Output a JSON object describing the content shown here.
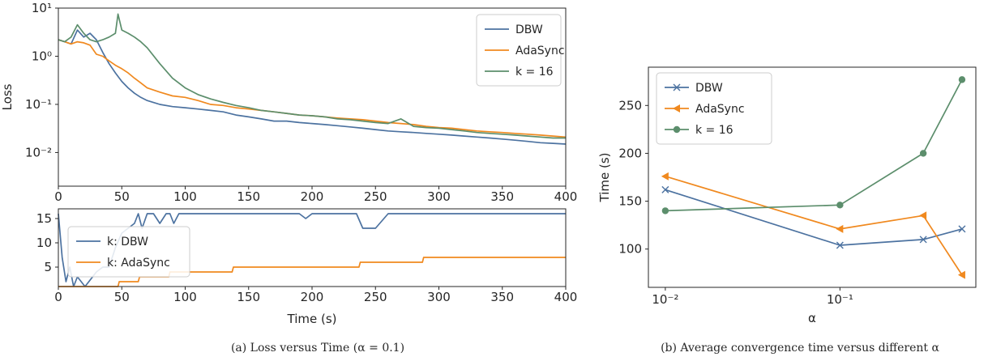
{
  "captions": {
    "a": "(a) Loss versus Time (α = 0.1)",
    "b": "(b) Average convergence time versus different α"
  },
  "colors": {
    "dbw": "#4c72a0",
    "adasync": "#f0891f",
    "k16": "#5c8e6c"
  },
  "chart_data": [
    {
      "type": "line",
      "ylabel": "Loss",
      "yscale": "log",
      "xlim": [
        0,
        400
      ],
      "ylim": [
        0.002,
        10
      ],
      "xticks": [
        "0",
        "50",
        "100",
        "150",
        "200",
        "250",
        "300",
        "350",
        "400"
      ],
      "yticks": [
        "10⁻²",
        "10⁻¹",
        "10⁰",
        "10¹"
      ],
      "legend_position": "top-right",
      "series": [
        {
          "name": "DBW",
          "x": [
            0,
            5,
            10,
            15,
            20,
            25,
            30,
            35,
            40,
            45,
            50,
            55,
            60,
            65,
            70,
            80,
            90,
            100,
            110,
            120,
            130,
            140,
            150,
            160,
            170,
            180,
            190,
            200,
            210,
            220,
            230,
            240,
            250,
            260,
            270,
            280,
            290,
            300,
            310,
            320,
            330,
            340,
            350,
            360,
            370,
            380,
            390,
            400
          ],
          "y": [
            2.2,
            2.0,
            1.8,
            3.5,
            2.5,
            3.0,
            2.2,
            1.2,
            0.7,
            0.45,
            0.3,
            0.22,
            0.17,
            0.14,
            0.12,
            0.1,
            0.09,
            0.085,
            0.08,
            0.075,
            0.07,
            0.06,
            0.055,
            0.05,
            0.045,
            0.045,
            0.042,
            0.04,
            0.038,
            0.036,
            0.034,
            0.032,
            0.03,
            0.028,
            0.027,
            0.026,
            0.025,
            0.024,
            0.023,
            0.022,
            0.021,
            0.02,
            0.019,
            0.018,
            0.017,
            0.016,
            0.0155,
            0.015
          ]
        },
        {
          "name": "AdaSync",
          "x": [
            0,
            5,
            10,
            15,
            20,
            25,
            30,
            35,
            40,
            45,
            50,
            55,
            60,
            65,
            70,
            80,
            90,
            100,
            110,
            120,
            130,
            140,
            150,
            160,
            170,
            180,
            190,
            200,
            210,
            220,
            230,
            240,
            250,
            260,
            270,
            280,
            290,
            300,
            310,
            320,
            330,
            340,
            350,
            360,
            370,
            380,
            390,
            400
          ],
          "y": [
            2.2,
            2.0,
            1.8,
            2.0,
            1.9,
            1.7,
            1.1,
            1.0,
            0.8,
            0.65,
            0.55,
            0.45,
            0.35,
            0.28,
            0.22,
            0.18,
            0.15,
            0.14,
            0.12,
            0.1,
            0.095,
            0.085,
            0.08,
            0.075,
            0.07,
            0.065,
            0.06,
            0.058,
            0.055,
            0.052,
            0.05,
            0.048,
            0.045,
            0.042,
            0.04,
            0.038,
            0.035,
            0.033,
            0.032,
            0.03,
            0.028,
            0.027,
            0.026,
            0.025,
            0.024,
            0.023,
            0.022,
            0.021
          ]
        },
        {
          "name": "k = 16",
          "x": [
            0,
            5,
            10,
            15,
            20,
            25,
            30,
            35,
            40,
            45,
            47,
            50,
            55,
            60,
            65,
            70,
            80,
            90,
            100,
            110,
            120,
            130,
            140,
            150,
            160,
            170,
            180,
            190,
            200,
            210,
            220,
            230,
            240,
            250,
            260,
            270,
            280,
            290,
            300,
            310,
            320,
            330,
            340,
            350,
            360,
            370,
            380,
            390,
            400
          ],
          "y": [
            2.2,
            2.0,
            2.5,
            4.5,
            3.0,
            2.2,
            2.0,
            2.2,
            2.5,
            3.0,
            7.5,
            3.5,
            3.0,
            2.5,
            2.0,
            1.5,
            0.7,
            0.35,
            0.22,
            0.16,
            0.13,
            0.11,
            0.095,
            0.085,
            0.075,
            0.07,
            0.065,
            0.06,
            0.058,
            0.055,
            0.05,
            0.048,
            0.045,
            0.042,
            0.04,
            0.05,
            0.035,
            0.033,
            0.032,
            0.03,
            0.028,
            0.026,
            0.025,
            0.024,
            0.023,
            0.022,
            0.021,
            0.02,
            0.02
          ]
        }
      ]
    },
    {
      "type": "line",
      "xlabel": "Time (s)",
      "xlim": [
        0,
        400
      ],
      "ylim": [
        1,
        17
      ],
      "xticks": [
        "0",
        "50",
        "100",
        "150",
        "200",
        "250",
        "300",
        "350",
        "400"
      ],
      "yticks": [
        "5",
        "10",
        "15"
      ],
      "legend_position": "left",
      "series": [
        {
          "name": "k: DBW",
          "x": [
            0,
            3,
            6,
            9,
            12,
            15,
            18,
            21,
            24,
            27,
            30,
            35,
            40,
            45,
            50,
            55,
            60,
            63,
            66,
            70,
            75,
            80,
            85,
            88,
            91,
            95,
            100,
            105,
            110,
            115,
            120,
            140,
            160,
            190,
            195,
            200,
            220,
            235,
            240,
            250,
            260,
            290,
            300,
            350,
            400
          ],
          "y": [
            16,
            7,
            2,
            5,
            1,
            3,
            2,
            1,
            2,
            3,
            4,
            5,
            5,
            9,
            12,
            13,
            14,
            16,
            13,
            16,
            16,
            14,
            16,
            16,
            14,
            16,
            16,
            16,
            16,
            16,
            16,
            16,
            16,
            16,
            15,
            16,
            16,
            16,
            13,
            13,
            16,
            16,
            16,
            16,
            16
          ]
        },
        {
          "name": "k: AdaSync",
          "x": [
            0,
            47,
            48,
            63,
            64,
            87,
            88,
            112,
            113,
            137,
            138,
            162,
            163,
            187,
            188,
            212,
            213,
            237,
            238,
            262,
            263,
            287,
            288,
            312,
            313,
            337,
            338,
            362,
            363,
            387,
            388,
            400
          ],
          "y": [
            1,
            1,
            2,
            2,
            3,
            3,
            4,
            4,
            4,
            4,
            5,
            5,
            5,
            5,
            5,
            5,
            5,
            5,
            6,
            6,
            6,
            6,
            7,
            7,
            7,
            7,
            7,
            7,
            7,
            7,
            7,
            7
          ]
        }
      ]
    },
    {
      "type": "line",
      "ylabel": "Time (s)",
      "xlabel": "α",
      "xscale": "log",
      "xlim": [
        0.008,
        0.6
      ],
      "ylim": [
        60,
        290
      ],
      "xticks": [
        "10⁻²",
        "10⁻¹"
      ],
      "yticks": [
        "100",
        "150",
        "200",
        "250"
      ],
      "legend_position": "top-left",
      "series": [
        {
          "name": "DBW",
          "marker": "x",
          "x": [
            0.01,
            0.1,
            0.3,
            0.5
          ],
          "y": [
            162,
            104,
            110,
            121
          ]
        },
        {
          "name": "AdaSync",
          "marker": "triangle-left",
          "x": [
            0.01,
            0.1,
            0.3,
            0.5
          ],
          "y": [
            176,
            121,
            135,
            73
          ]
        },
        {
          "name": "k = 16",
          "marker": "circle",
          "x": [
            0.01,
            0.1,
            0.3,
            0.5
          ],
          "y": [
            140,
            146,
            200,
            277
          ]
        }
      ]
    }
  ]
}
